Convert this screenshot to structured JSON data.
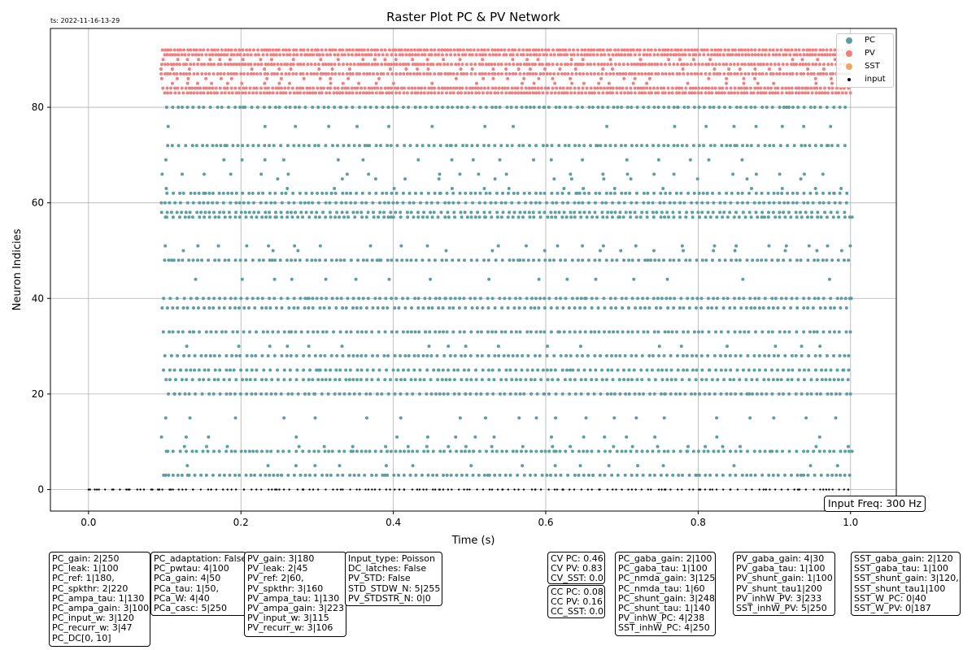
{
  "timestamp": "ts: 2022-11-16-13-29",
  "input_freq_label": "Input Freq: 300 Hz",
  "colors": {
    "PC": "#5f9ea0",
    "PV": "#f08080",
    "SST": "#f4a460",
    "input": "#000000"
  },
  "chart_data": {
    "type": "scatter",
    "title": "Raster Plot PC & PV Network",
    "xlabel": "Time (s)",
    "ylabel": "Neuron Indicies",
    "xlim": [
      -0.05,
      1.06
    ],
    "ylim": [
      -4.5,
      96.5
    ],
    "xticks": [
      0.0,
      0.2,
      0.4,
      0.6,
      0.8,
      1.0
    ],
    "xtick_labels": [
      "0.0",
      "0.2",
      "0.4",
      "0.6",
      "0.8",
      "1.0"
    ],
    "yticks": [
      0,
      20,
      40,
      60,
      80
    ],
    "ytick_labels": [
      "0",
      "20",
      "40",
      "60",
      "80"
    ],
    "grid": true,
    "legend_position": "top-right",
    "legend": [
      "PC",
      "PV",
      "SST",
      "input"
    ],
    "series": [
      {
        "name": "PC",
        "marker": "dot",
        "approx_onset_s": 0.095,
        "approx_end_s": 1.0,
        "active_neuron_indices": [
          3,
          5,
          8,
          9,
          11,
          15,
          20,
          23,
          25,
          28,
          30,
          33,
          38,
          40,
          44,
          48,
          50,
          51,
          57,
          58,
          60,
          62,
          63,
          65,
          66,
          69,
          72,
          76,
          80
        ],
        "dense_rows": [
          3,
          8,
          20,
          23,
          25,
          28,
          33,
          38,
          40,
          48,
          57,
          58,
          60,
          62,
          72,
          80
        ],
        "sample_points": [
          [
            0.101,
            3
          ],
          [
            0.132,
            3
          ],
          [
            0.253,
            3
          ],
          [
            0.389,
            3
          ],
          [
            0.524,
            3
          ],
          [
            0.662,
            3
          ],
          [
            0.798,
            3
          ],
          [
            0.935,
            3
          ],
          [
            0.104,
            8
          ],
          [
            0.216,
            8
          ],
          [
            0.347,
            8
          ],
          [
            0.505,
            8
          ],
          [
            0.611,
            8
          ],
          [
            0.786,
            8
          ],
          [
            0.897,
            8
          ],
          [
            1.002,
            8
          ],
          [
            0.113,
            20
          ],
          [
            0.296,
            20
          ],
          [
            0.495,
            20
          ],
          [
            0.598,
            20
          ],
          [
            0.756,
            20
          ],
          [
            0.867,
            20
          ],
          [
            0.121,
            25
          ],
          [
            0.302,
            25
          ],
          [
            0.459,
            25
          ],
          [
            0.632,
            25
          ],
          [
            0.815,
            25
          ],
          [
            0.991,
            25
          ],
          [
            0.138,
            33
          ],
          [
            0.266,
            33
          ],
          [
            0.442,
            33
          ],
          [
            0.618,
            33
          ],
          [
            0.761,
            33
          ],
          [
            0.952,
            33
          ],
          [
            0.142,
            40
          ],
          [
            0.288,
            40
          ],
          [
            0.468,
            40
          ],
          [
            0.653,
            40
          ],
          [
            0.799,
            40
          ],
          [
            1.001,
            40
          ],
          [
            0.109,
            48
          ],
          [
            0.241,
            48
          ],
          [
            0.382,
            48
          ],
          [
            0.566,
            48
          ],
          [
            0.734,
            48
          ],
          [
            0.905,
            48
          ],
          [
            0.101,
            57
          ],
          [
            0.245,
            57
          ],
          [
            0.397,
            57
          ],
          [
            0.521,
            57
          ],
          [
            0.697,
            57
          ],
          [
            0.887,
            57
          ],
          [
            1.002,
            57
          ],
          [
            0.151,
            62
          ],
          [
            0.319,
            62
          ],
          [
            0.462,
            62
          ],
          [
            0.641,
            62
          ],
          [
            0.812,
            62
          ],
          [
            0.978,
            62
          ],
          [
            0.179,
            72
          ],
          [
            0.366,
            72
          ],
          [
            0.476,
            72
          ],
          [
            0.668,
            72
          ],
          [
            0.848,
            72
          ],
          [
            0.969,
            72
          ],
          [
            0.203,
            80
          ],
          [
            0.331,
            80
          ],
          [
            0.429,
            80
          ],
          [
            0.598,
            80
          ],
          [
            0.773,
            80
          ],
          [
            0.916,
            80
          ]
        ]
      },
      {
        "name": "PV",
        "marker": "dot",
        "approx_onset_s": 0.095,
        "approx_end_s": 1.0,
        "neuron_indices": [
          83,
          84,
          85,
          86,
          87,
          88,
          89,
          90,
          91,
          92
        ],
        "dense_rows": [
          83,
          84,
          87,
          89,
          91,
          92
        ]
      },
      {
        "name": "SST",
        "marker": "dot",
        "spikes": []
      },
      {
        "name": "input",
        "marker": "small-dot",
        "neuron_index": 0,
        "approx_span_s": [
          0.0,
          1.0
        ],
        "sample_points": [
          0.002,
          0.011,
          0.031,
          0.052,
          0.068,
          0.084,
          0.093,
          0.108,
          0.137,
          0.161,
          0.204,
          0.247,
          0.282,
          0.331,
          0.372,
          0.414,
          0.461,
          0.497,
          0.543,
          0.586,
          0.622,
          0.671,
          0.713,
          0.756,
          0.801,
          0.842,
          0.889,
          0.931,
          0.968,
          0.997
        ]
      }
    ]
  },
  "param_boxes": [
    {
      "id": "pc-params",
      "lines": [
        "PC_gain: 2|250",
        "PC_leak: 1|100",
        "PC_ref: 1|180,",
        "PC_spkthr: 2|220",
        "PC_ampa_tau: 1|130",
        "PC_ampa_gain: 3|100",
        "PC_input_w: 3|120",
        "PC_recurr_w: 3|47",
        "PC_DC[0, 10]"
      ]
    },
    {
      "id": "pc-adapt-params",
      "lines": [
        "PC_adaptation: False",
        "PC_pwtau: 4|100",
        "PCa_gain: 4|50",
        "PCa_tau: 1|50,",
        "PCa_W: 4|40",
        "PCa_casc: 5|250"
      ]
    },
    {
      "id": "pv-params",
      "lines": [
        "PV_gain: 3|180",
        "PV_leak: 2|45",
        "PV_ref: 2|60,",
        "PV_spkthr: 3|160",
        "PV_ampa_tau: 1|130",
        "PV_ampa_gain: 3|223",
        "PV_input_w: 3|115",
        "PV_recurr_w: 3|106"
      ]
    },
    {
      "id": "input-params",
      "lines": [
        "Input_type: Poisson",
        "DC_latches: False",
        "PV_STD: False",
        "STD_STDW_N: 5|255",
        "PV_STDSTR_N: 0|0"
      ]
    },
    {
      "id": "cv-stats",
      "lines": [
        "CV PC: 0.46",
        "CV PV: 0.83",
        "CV_SST: 0.0"
      ]
    },
    {
      "id": "cc-stats",
      "lines": [
        "CC PC: 0.08",
        "CC PV: 0.16",
        "CC_SST: 0.0"
      ]
    },
    {
      "id": "pc-gaba-params",
      "lines": [
        "PC_gaba_gain: 2|100",
        "PC_gaba_tau: 1|100",
        "PC_nmda_gain: 3|125",
        "PC_nmda_tau: 1|60",
        "PC_shunt_gain: 3|248",
        "PC_shunt_tau: 1|140",
        "PV_inhW_PC: 4|238",
        "SST_inhW_PC: 4|250"
      ]
    },
    {
      "id": "pv-gaba-params",
      "lines": [
        "PV_gaba_gain: 4|30",
        "PV_gaba_tau: 1|100",
        "PV_shunt_gain: 1|100",
        "PV_shunt_tau1|200",
        "PV_inhW_PV: 3|233",
        "SST_inhW_PV: 5|250"
      ]
    },
    {
      "id": "sst-params",
      "lines": [
        "SST_gaba_gain: 2|120",
        "SST_gaba_tau: 1|100",
        "SST_shunt_gain: 3|120,",
        "SST_shunt_tau1|100",
        "SST_W_PC: 0|40",
        "SST_W_PV: 0|187"
      ]
    }
  ]
}
